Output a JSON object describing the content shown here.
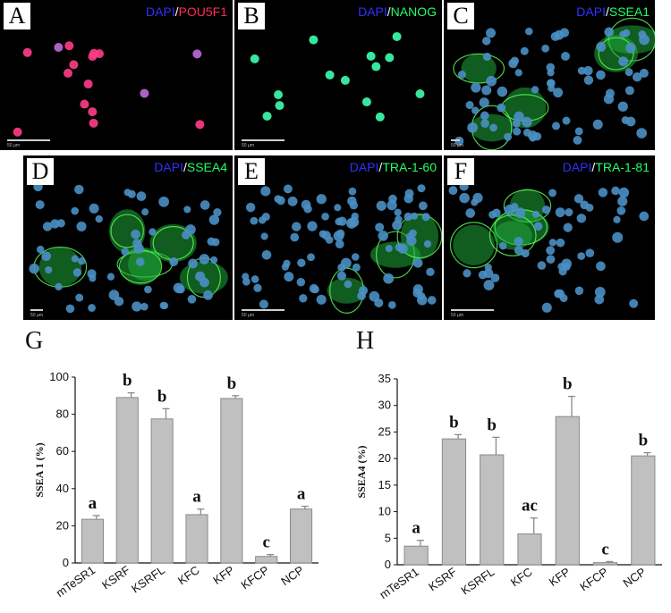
{
  "panels": [
    {
      "letter": "A",
      "stain_a": "DAPI",
      "stain_b": "POU5F1",
      "color_b": "#ff2a55",
      "scale": "50 µm"
    },
    {
      "letter": "B",
      "stain_a": "DAPI",
      "stain_b": "NANOG",
      "color_b": "#22ff66",
      "scale": "50 µm"
    },
    {
      "letter": "C",
      "stain_a": "DAPI",
      "stain_b": "SSEA1",
      "color_b": "#22ff66",
      "scale": "50 µm"
    },
    {
      "letter": "D",
      "stain_a": "DAPI",
      "stain_b": "SSEA4",
      "color_b": "#22ff66",
      "scale": "50 µm"
    },
    {
      "letter": "E",
      "stain_a": "DAPI",
      "stain_b": "TRA-1-60",
      "color_b": "#22ff66",
      "scale": "50 µm"
    },
    {
      "letter": "F",
      "stain_a": "DAPI",
      "stain_b": "TRA-1-81",
      "color_b": "#22ff66",
      "scale": "50 µm"
    }
  ],
  "chart_labels": {
    "g": "G",
    "h": "H"
  },
  "chart_data": [
    {
      "type": "bar",
      "categories": [
        "mTeSR1",
        "KSRF",
        "KSRFL",
        "KFC",
        "KFP",
        "KFCP",
        "NCP"
      ],
      "values": [
        23.5,
        89,
        77.5,
        26,
        88.5,
        3.5,
        29
      ],
      "errors": [
        2,
        2.5,
        5.5,
        3,
        1.5,
        1,
        1.5
      ],
      "significance": [
        "a",
        "b",
        "b",
        "a",
        "b",
        "c",
        "a"
      ],
      "ylabel": "SSEA 1 (%)",
      "ylim": [
        0,
        100
      ],
      "yticks": [
        0,
        20,
        40,
        60,
        80,
        100
      ],
      "grid": false,
      "bar_color": "#c0c0c0"
    },
    {
      "type": "bar",
      "categories": [
        "mTeSR1",
        "KSRF",
        "KSRFL",
        "KFC",
        "KFP",
        "KFCP",
        "NCP"
      ],
      "values": [
        3.5,
        23.7,
        20.7,
        5.8,
        27.9,
        0.4,
        20.5
      ],
      "errors": [
        1.1,
        0.8,
        3.3,
        3.0,
        3.8,
        0.2,
        0.6
      ],
      "significance": [
        "a",
        "b",
        "b",
        "ac",
        "b",
        "c",
        "b"
      ],
      "ylabel": "SSEA4 (%)",
      "ylim": [
        0,
        35
      ],
      "yticks": [
        0,
        5,
        10,
        15,
        20,
        25,
        30,
        35
      ],
      "grid": false,
      "bar_color": "#c0c0c0"
    }
  ]
}
